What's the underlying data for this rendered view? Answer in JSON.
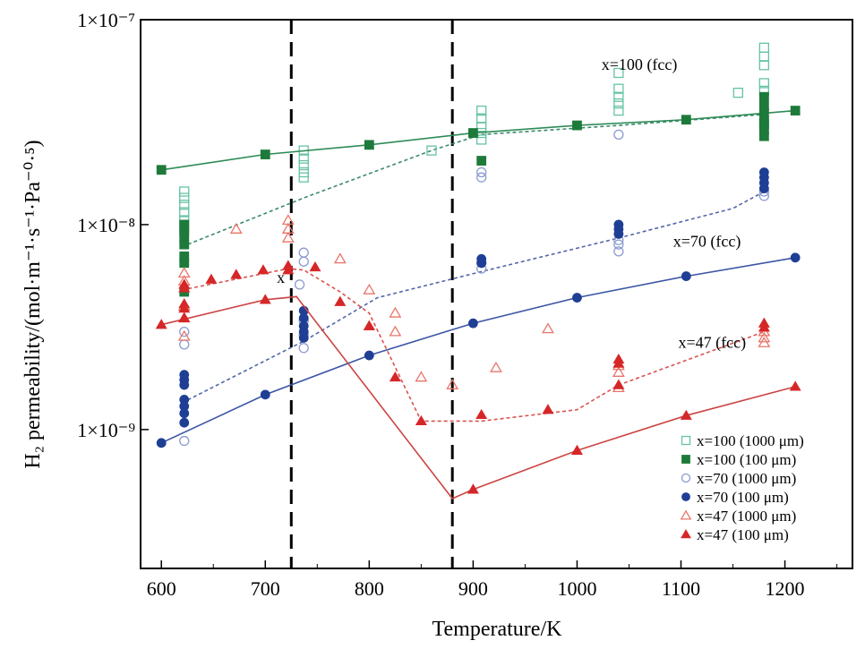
{
  "chart_data": {
    "type": "scatter",
    "xlabel": "Temperature/K",
    "ylabel": "H₂ permeability/(mol·m⁻¹·s⁻¹·Pa⁻⁰·⁵)",
    "xlim": [
      580,
      1265
    ],
    "ylim": [
      2.1e-10,
      1e-07
    ],
    "yscale": "log",
    "xticks": [
      600,
      700,
      800,
      900,
      1000,
      1100,
      1200
    ],
    "xtick_labels": [
      "600",
      "700",
      "800",
      "900",
      "1000",
      "1100",
      "1200"
    ],
    "yticks": [
      1e-09,
      1e-08,
      1e-07
    ],
    "ytick_labels": [
      "1×10⁻⁹",
      "1×10⁻⁸",
      "1×10⁻⁷"
    ],
    "grid": false,
    "legend_position": "bottom-right",
    "vertical_lines": [
      725,
      880
    ],
    "annotations": [
      {
        "text": "x=100 (fcc)",
        "x": 1060,
        "y": 5.7e-08
      },
      {
        "text": "x=70 (fcc)",
        "x": 1125,
        "y": 7.8e-09
      },
      {
        "text": "x=47 (fcc)",
        "x": 1130,
        "y": 2.5e-09
      },
      {
        "text": "x",
        "x": 715,
        "y": 5.2e-09
      }
    ],
    "series": [
      {
        "name": "x=100 (1000 μm)",
        "marker": "square-open",
        "color": "#66c2a5",
        "line_style": "dashed",
        "line_color": "#3a8a6a",
        "points": [
          [
            622,
            1.45e-08
          ],
          [
            622,
            1.35e-08
          ],
          [
            622,
            1.25e-08
          ],
          [
            622,
            1.15e-08
          ],
          [
            622,
            1.05e-08
          ],
          [
            622,
            9.6e-09
          ],
          [
            737,
            2.3e-08
          ],
          [
            737,
            2.1e-08
          ],
          [
            737,
            1.95e-08
          ],
          [
            737,
            1.8e-08
          ],
          [
            737,
            1.7e-08
          ],
          [
            860,
            2.3e-08
          ],
          [
            908,
            3.6e-08
          ],
          [
            908,
            3.3e-08
          ],
          [
            908,
            3e-08
          ],
          [
            908,
            2.8e-08
          ],
          [
            908,
            2.6e-08
          ],
          [
            1040,
            5.5e-08
          ],
          [
            1040,
            4.6e-08
          ],
          [
            1040,
            4.2e-08
          ],
          [
            1040,
            3.9e-08
          ],
          [
            1040,
            3.6e-08
          ],
          [
            1155,
            4.4e-08
          ],
          [
            1180,
            7.3e-08
          ],
          [
            1180,
            6.6e-08
          ],
          [
            1180,
            6e-08
          ],
          [
            1180,
            4.9e-08
          ],
          [
            1180,
            4.5e-08
          ],
          [
            1180,
            3.1e-08
          ]
        ],
        "fit": [
          [
            620,
            7.8e-09
          ],
          [
            737,
            1.35e-08
          ],
          [
            860,
            2.3e-08
          ],
          [
            908,
            2.75e-08
          ],
          [
            1040,
            3.05e-08
          ],
          [
            1180,
            3.45e-08
          ]
        ]
      },
      {
        "name": "x=100 (100 μm)",
        "marker": "square-filled",
        "color": "#1e7a3a",
        "line_style": "solid",
        "line_color": "#2e8b57",
        "points": [
          [
            600,
            1.85e-08
          ],
          [
            700,
            2.2e-08
          ],
          [
            800,
            2.45e-08
          ],
          [
            900,
            2.8e-08
          ],
          [
            1000,
            3.05e-08
          ],
          [
            1105,
            3.25e-08
          ],
          [
            1210,
            3.6e-08
          ],
          [
            622,
            1e-08
          ],
          [
            622,
            9.2e-09
          ],
          [
            622,
            8.6e-09
          ],
          [
            622,
            8e-09
          ],
          [
            622,
            7e-09
          ],
          [
            622,
            6.5e-09
          ],
          [
            622,
            4.7e-09
          ],
          [
            908,
            2.05e-08
          ],
          [
            1180,
            4.2e-08
          ],
          [
            1180,
            3.8e-08
          ],
          [
            1180,
            3.5e-08
          ],
          [
            1180,
            3.2e-08
          ],
          [
            1180,
            2.9e-08
          ],
          [
            1180,
            2.7e-08
          ]
        ],
        "fit": [
          [
            600,
            1.85e-08
          ],
          [
            700,
            2.2e-08
          ],
          [
            800,
            2.45e-08
          ],
          [
            900,
            2.8e-08
          ],
          [
            1000,
            3.05e-08
          ],
          [
            1105,
            3.25e-08
          ],
          [
            1210,
            3.6e-08
          ]
        ]
      },
      {
        "name": "x=70 (1000 μm)",
        "marker": "circle-open",
        "color": "#8a9bcf",
        "line_style": "dashed",
        "line_color": "#5566aa",
        "points": [
          [
            622,
            3e-09
          ],
          [
            622,
            2.6e-09
          ],
          [
            737,
            7.3e-09
          ],
          [
            737,
            6.6e-09
          ],
          [
            733,
            5.1e-09
          ],
          [
            737,
            3.4e-09
          ],
          [
            737,
            2.9e-09
          ],
          [
            737,
            2.5e-09
          ],
          [
            908,
            6.5e-09
          ],
          [
            908,
            6.1e-09
          ],
          [
            908,
            1.8e-08
          ],
          [
            908,
            1.7e-08
          ],
          [
            1040,
            8.4e-09
          ],
          [
            1040,
            8e-09
          ],
          [
            1040,
            7.4e-09
          ],
          [
            1040,
            2.75e-08
          ],
          [
            1180,
            1.45e-08
          ],
          [
            1180,
            1.38e-08
          ],
          [
            622,
            8.8e-10
          ]
        ],
        "fit": [
          [
            620,
            1.35e-09
          ],
          [
            737,
            2.7e-09
          ],
          [
            808,
            4.4e-09
          ],
          [
            908,
            5.9e-09
          ],
          [
            1040,
            8.6e-09
          ],
          [
            1150,
            1.2e-08
          ],
          [
            1180,
            1.45e-08
          ]
        ]
      },
      {
        "name": "x=70 (100 μm)",
        "marker": "circle-filled",
        "color": "#1f3f95",
        "line_style": "solid",
        "line_color": "#3a55a5",
        "points": [
          [
            600,
            8.6e-10
          ],
          [
            700,
            1.48e-09
          ],
          [
            800,
            2.3e-09
          ],
          [
            900,
            3.3e-09
          ],
          [
            1000,
            4.4e-09
          ],
          [
            1105,
            5.6e-09
          ],
          [
            1210,
            6.9e-09
          ],
          [
            622,
            1.85e-09
          ],
          [
            622,
            1.75e-09
          ],
          [
            622,
            1.65e-09
          ],
          [
            622,
            1.4e-09
          ],
          [
            622,
            1.3e-09
          ],
          [
            622,
            1.2e-09
          ],
          [
            622,
            1.08e-09
          ],
          [
            737,
            3.8e-09
          ],
          [
            737,
            3.5e-09
          ],
          [
            737,
            3.2e-09
          ],
          [
            737,
            3e-09
          ],
          [
            737,
            2.8e-09
          ],
          [
            908,
            6.8e-09
          ],
          [
            908,
            6.5e-09
          ],
          [
            1040,
            1e-08
          ],
          [
            1040,
            9.5e-09
          ],
          [
            1040,
            9e-09
          ],
          [
            1180,
            1.8e-08
          ],
          [
            1180,
            1.7e-08
          ],
          [
            1180,
            1.6e-08
          ],
          [
            1180,
            1.5e-08
          ]
        ],
        "fit": [
          [
            600,
            8.6e-10
          ],
          [
            700,
            1.48e-09
          ],
          [
            800,
            2.3e-09
          ],
          [
            900,
            3.3e-09
          ],
          [
            1000,
            4.4e-09
          ],
          [
            1105,
            5.6e-09
          ],
          [
            1210,
            6.9e-09
          ]
        ]
      },
      {
        "name": "x=47 (1000 μm)",
        "marker": "triangle-open",
        "color": "#e8756a",
        "line_style": "dashed",
        "line_color": "#d9534f",
        "points": [
          [
            622,
            5.8e-09
          ],
          [
            622,
            5.3e-09
          ],
          [
            622,
            4e-09
          ],
          [
            622,
            3.5e-09
          ],
          [
            622,
            2.85e-09
          ],
          [
            672,
            9.5e-09
          ],
          [
            722,
            1.05e-08
          ],
          [
            722,
            9.5e-09
          ],
          [
            722,
            8.6e-09
          ],
          [
            772,
            6.8e-09
          ],
          [
            800,
            4.8e-09
          ],
          [
            825,
            3.7e-09
          ],
          [
            825,
            3e-09
          ],
          [
            850,
            1.8e-09
          ],
          [
            880,
            1.65e-09
          ],
          [
            922,
            2e-09
          ],
          [
            972,
            3.1e-09
          ],
          [
            1040,
            2.05e-09
          ],
          [
            1040,
            1.9e-09
          ],
          [
            1040,
            1.6e-09
          ],
          [
            1180,
            3e-09
          ],
          [
            1180,
            2.8e-09
          ],
          [
            1180,
            2.65e-09
          ]
        ],
        "fit": [
          [
            620,
            4.8e-09
          ],
          [
            722,
            6.1e-09
          ],
          [
            737,
            6e-09
          ],
          [
            772,
            4.7e-09
          ],
          [
            800,
            3.7e-09
          ],
          [
            850,
            1.1e-09
          ],
          [
            908,
            1.1e-09
          ],
          [
            1000,
            1.25e-09
          ],
          [
            1040,
            1.65e-09
          ],
          [
            1180,
            3e-09
          ]
        ]
      },
      {
        "name": "x=47 (100 μm)",
        "marker": "triangle-filled",
        "color": "#d62728",
        "line_style": "solid",
        "line_color": "#cc4444",
        "points": [
          [
            600,
            3.25e-09
          ],
          [
            700,
            4.3e-09
          ],
          [
            800,
            3.2e-09
          ],
          [
            900,
            5.1e-10
          ],
          [
            1000,
            7.9e-10
          ],
          [
            1105,
            1.17e-09
          ],
          [
            1210,
            1.62e-09
          ],
          [
            622,
            5.1e-09
          ],
          [
            622,
            4.9e-09
          ],
          [
            622,
            4.1e-09
          ],
          [
            622,
            3.9e-09
          ],
          [
            622,
            3.5e-09
          ],
          [
            648,
            5.4e-09
          ],
          [
            672,
            5.7e-09
          ],
          [
            698,
            6e-09
          ],
          [
            722,
            6.3e-09
          ],
          [
            722,
            6e-09
          ],
          [
            748,
            6.2e-09
          ],
          [
            772,
            4.2e-09
          ],
          [
            800,
            3.2e-09
          ],
          [
            825,
            1.8e-09
          ],
          [
            850,
            1.1e-09
          ],
          [
            908,
            1.18e-09
          ],
          [
            972,
            1.25e-09
          ],
          [
            1040,
            2.2e-09
          ],
          [
            1040,
            2.1e-09
          ],
          [
            1040,
            1.65e-09
          ],
          [
            1180,
            3.3e-09
          ],
          [
            1180,
            3.15e-09
          ]
        ],
        "fit": [
          [
            600,
            3.25e-09
          ],
          [
            700,
            4.3e-09
          ],
          [
            730,
            4.45e-09
          ],
          [
            880,
            4.6e-10
          ],
          [
            900,
            5.1e-10
          ],
          [
            1000,
            7.9e-10
          ],
          [
            1105,
            1.17e-09
          ],
          [
            1210,
            1.62e-09
          ]
        ]
      }
    ]
  }
}
